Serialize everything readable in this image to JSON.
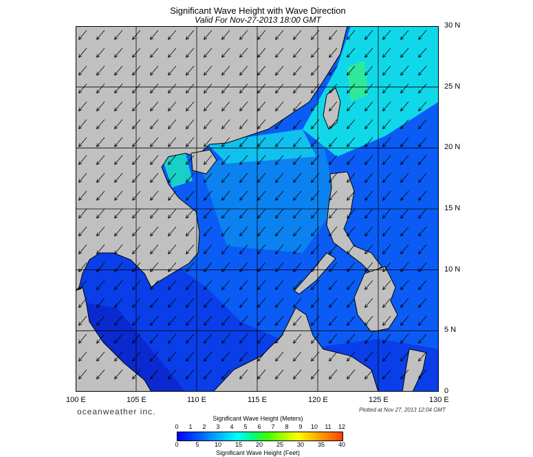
{
  "title": "Significant Wave Height with Wave Direction",
  "subtitle": "Valid For Nov-27-2013 18:00 GMT",
  "map": {
    "region": "South China Sea",
    "lon_range": [
      100,
      130
    ],
    "lat_range": [
      0,
      30
    ],
    "lon_labels": [
      "100 E",
      "105 E",
      "110 E",
      "115 E",
      "120 E",
      "125 E",
      "130 E"
    ],
    "lat_labels": [
      "30 N",
      "25 N",
      "20 N",
      "15 N",
      "10 N",
      "5 N",
      "0"
    ],
    "land_color": "#c0c0c0",
    "arrow_direction": "toward southwest"
  },
  "brand": "oceanweather inc.",
  "plotted": "Plotted at Nov 27, 2013 12:04 GMT",
  "colorbar": {
    "meters_title": "Significant Wave Height (Meters)",
    "meters_ticks": [
      "0",
      "1",
      "2",
      "3",
      "4",
      "5",
      "6",
      "7",
      "8",
      "9",
      "10",
      "11",
      "12"
    ],
    "feet_title": "Significant Wave Height (Feet)",
    "feet_ticks": [
      "0",
      "5",
      "10",
      "15",
      "20",
      "25",
      "30",
      "35",
      "40"
    ],
    "colors": [
      "#0000ff",
      "#0040ff",
      "#0080ff",
      "#00c0ff",
      "#00ffff",
      "#00ff80",
      "#40ff00",
      "#a0ff00",
      "#ffff00",
      "#ffc000",
      "#ff8000",
      "#ff4000"
    ]
  }
}
